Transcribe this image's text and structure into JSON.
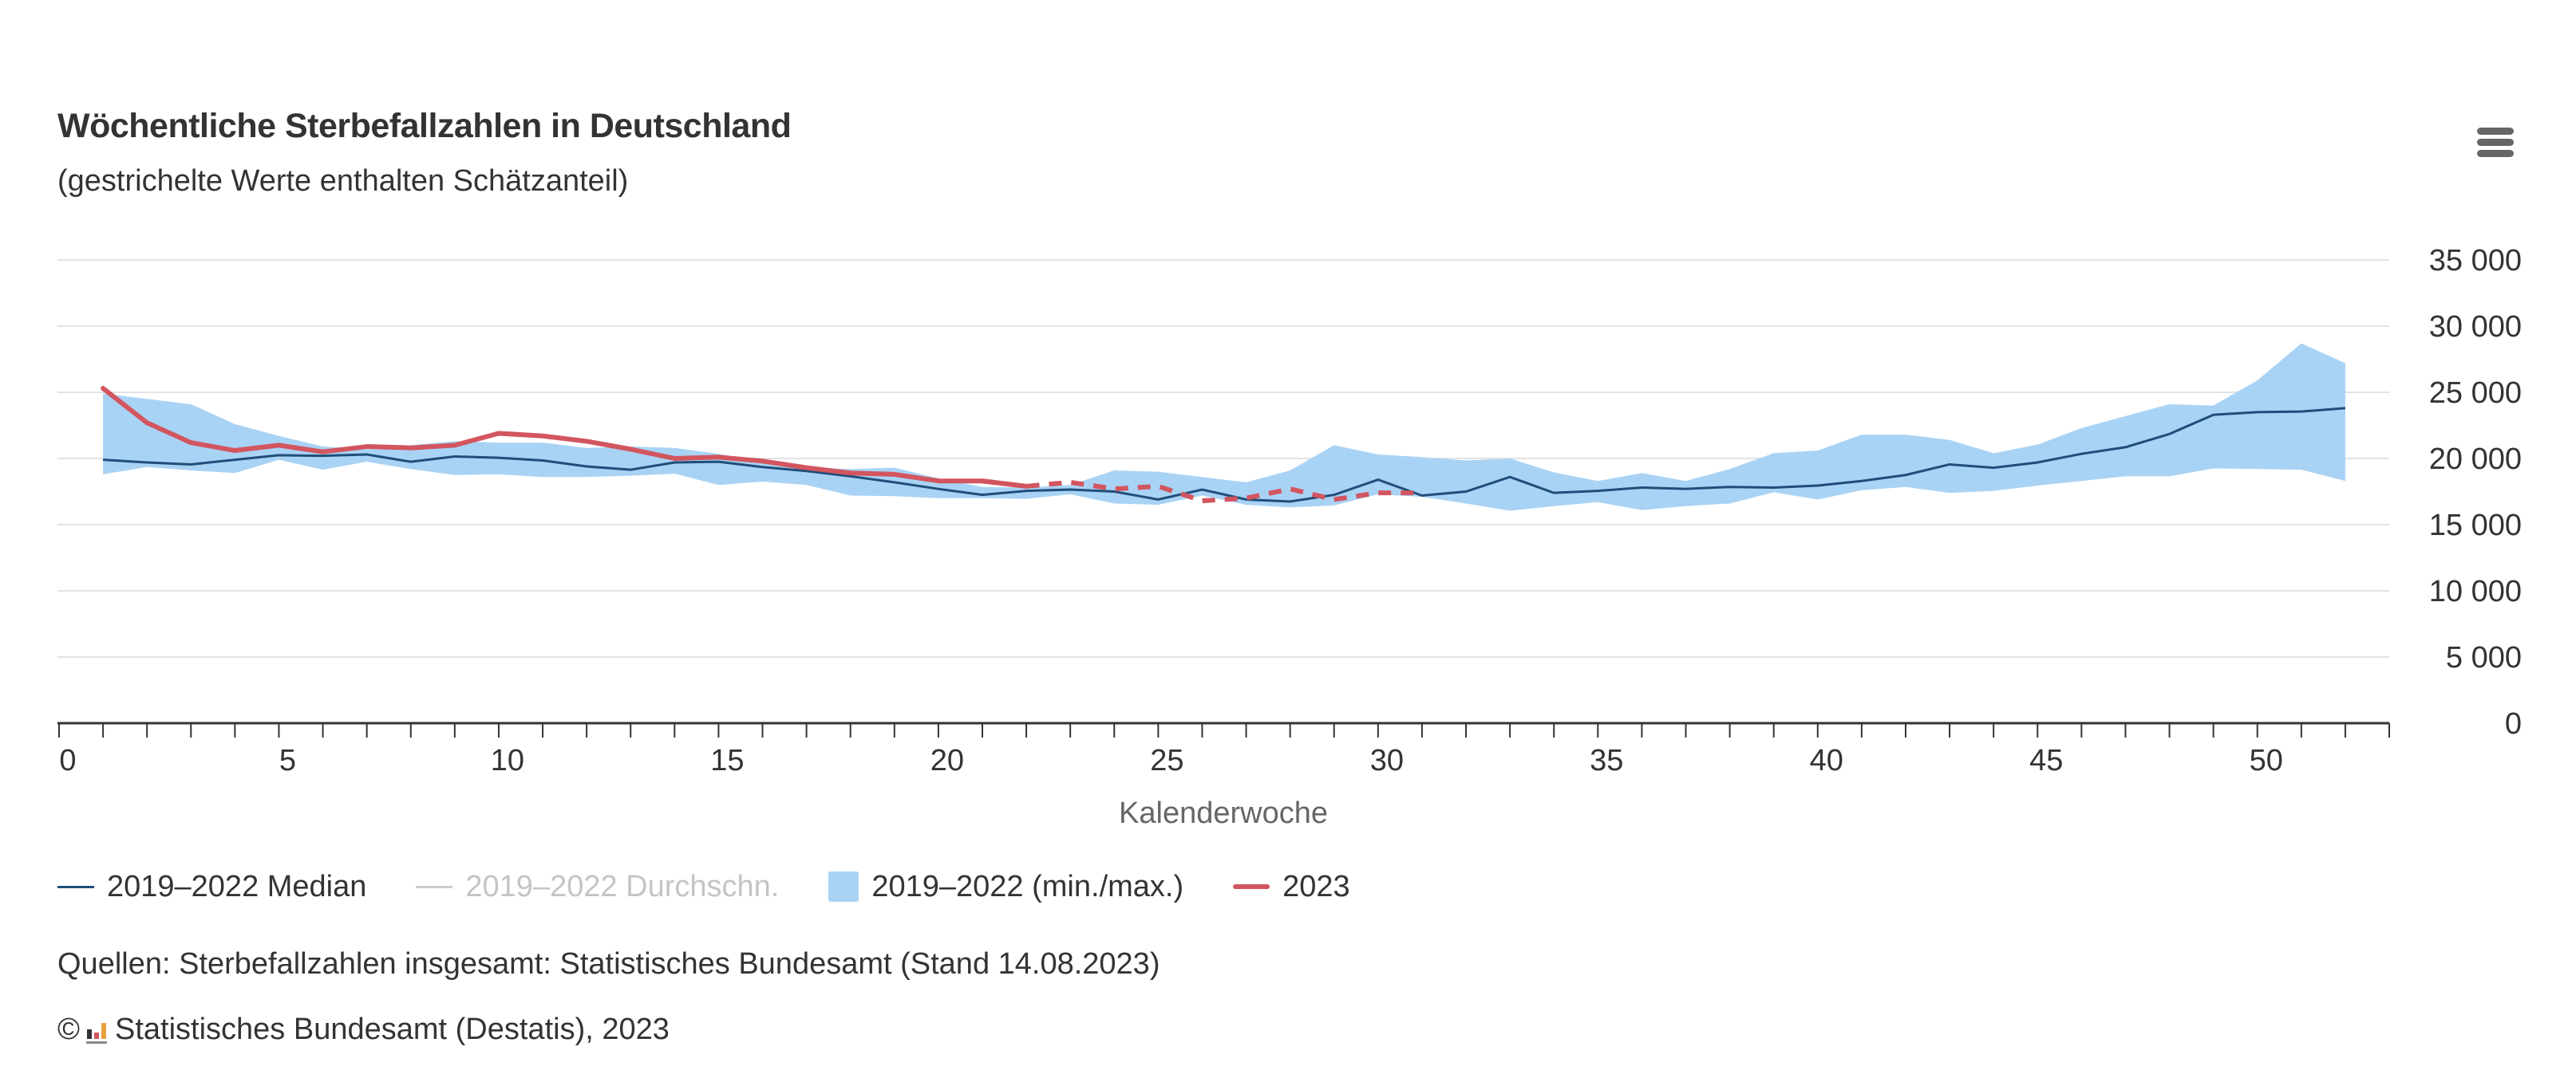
{
  "title": "Wöchentliche Sterbefallzahlen in Deutschland",
  "subtitle": "(gestrichelte Werte enthalten Schätzanteil)",
  "menu_icon": "hamburger-menu-icon",
  "colors": {
    "median": "#1f4e79",
    "average": "#c8c8c8",
    "range": "#a9d3f5",
    "y2023": "#d2555f",
    "grid": "#e3e3e3",
    "axis": "#333333"
  },
  "legend": {
    "median": "2019–2022 Median",
    "average": "2019–2022 Durchschn.",
    "range": "2019–2022 (min./max.)",
    "y2023": "2023"
  },
  "source_text": "Quellen: Sterbefallzahlen insgesamt: Statistisches Bundesamt (Stand 14.08.2023)",
  "copyright": {
    "symbol": "©",
    "logo": "destatis-logo-icon",
    "text": "Statistisches Bundesamt (Destatis), 2023"
  },
  "chart_data": {
    "type": "line",
    "xlabel": "Kalenderwoche",
    "ylabel": "",
    "xlim": [
      0,
      53
    ],
    "ylim": [
      0,
      35000
    ],
    "x_ticks": [
      0,
      5,
      10,
      15,
      20,
      25,
      30,
      35,
      40,
      45,
      50
    ],
    "y_ticks": [
      0,
      5000,
      10000,
      15000,
      20000,
      25000,
      30000,
      35000
    ],
    "y_tick_labels": [
      "0",
      "5 000",
      "10 000",
      "15 000",
      "20 000",
      "25 000",
      "30 000",
      "35 000"
    ],
    "grid": true,
    "legend_position": "bottom-left",
    "weeks": [
      1,
      2,
      3,
      4,
      5,
      6,
      7,
      8,
      9,
      10,
      11,
      12,
      13,
      14,
      15,
      16,
      17,
      18,
      19,
      20,
      21,
      22,
      23,
      24,
      25,
      26,
      27,
      28,
      29,
      30,
      31,
      32,
      33,
      34,
      35,
      36,
      37,
      38,
      39,
      40,
      41,
      42,
      43,
      44,
      45,
      46,
      47,
      48,
      49,
      50,
      51,
      52
    ],
    "series": [
      {
        "name": "2019–2022 Median",
        "values": [
          19900,
          19700,
          19550,
          19900,
          20250,
          20200,
          20300,
          19750,
          20150,
          20050,
          19850,
          19400,
          19150,
          19700,
          19750,
          19350,
          19050,
          18650,
          18200,
          17700,
          17250,
          17550,
          17650,
          17500,
          16900,
          17650,
          16900,
          16750,
          17250,
          18400,
          17200,
          17500,
          18600,
          17400,
          17550,
          17800,
          17700,
          17850,
          17800,
          17950,
          18300,
          18750,
          19550,
          19300,
          19700,
          20350,
          20850,
          21850,
          23300,
          23500,
          23550,
          23800
        ]
      },
      {
        "name": "2019–2022 Durchschn.",
        "hidden": true
      },
      {
        "name": "2019–2022 (min./max.)",
        "type": "arearange",
        "low": [
          18800,
          19350,
          19100,
          18900,
          19900,
          19150,
          19750,
          19200,
          18750,
          18800,
          18600,
          18600,
          18700,
          18850,
          18000,
          18250,
          18000,
          17200,
          17150,
          17000,
          17000,
          16950,
          17300,
          16600,
          16500,
          17200,
          16500,
          16300,
          16450,
          17300,
          17100,
          16600,
          16050,
          16400,
          16700,
          16100,
          16400,
          16600,
          17450,
          16900,
          17600,
          17850,
          17400,
          17550,
          17950,
          18300,
          18650,
          18650,
          19250,
          19200,
          19150,
          18300
        ],
        "high": [
          24900,
          24500,
          24100,
          22600,
          21700,
          20900,
          20700,
          21000,
          21300,
          21200,
          21200,
          20800,
          20900,
          20800,
          20350,
          19750,
          19300,
          19200,
          19300,
          18500,
          17850,
          17800,
          18000,
          19100,
          19000,
          18600,
          18200,
          19100,
          21000,
          20300,
          20100,
          19850,
          20000,
          18950,
          18300,
          18900,
          18300,
          19200,
          20400,
          20600,
          21800,
          21800,
          21400,
          20400,
          21050,
          22300,
          23200,
          24100,
          24000,
          25900,
          28700,
          27200
        ]
      },
      {
        "name": "2023",
        "values": [
          25300,
          22700,
          21200,
          20600,
          21000,
          20500,
          20900,
          20800,
          21000,
          21900,
          21700,
          21300,
          20700,
          20000,
          20100,
          19800,
          19300,
          18900,
          18800,
          18300,
          18300,
          17900,
          18200,
          17700,
          17900,
          16800,
          17000,
          17700,
          16900,
          17400,
          17400
        ],
        "estimated_from_week": 22
      }
    ]
  }
}
